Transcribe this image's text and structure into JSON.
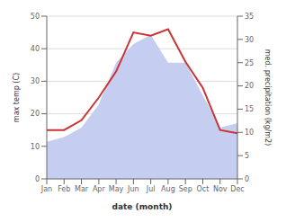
{
  "chart_data": {
    "type": "line",
    "categories": [
      "Jan",
      "Feb",
      "Mar",
      "Apr",
      "May",
      "Jun",
      "Jul",
      "Aug",
      "Sep",
      "Oct",
      "Nov",
      "Dec"
    ],
    "series": [
      {
        "type": "area",
        "color": "#c5cef0",
        "axis": "y2",
        "values": [
          8,
          9,
          11,
          16,
          25,
          29,
          31,
          25,
          25,
          18,
          11,
          12
        ]
      },
      {
        "type": "line",
        "color": "#cc3333",
        "values": [
          15,
          15,
          18,
          25,
          33,
          45,
          44,
          46,
          36,
          28,
          15,
          14
        ]
      }
    ],
    "xlabel": "date (month)",
    "ylabel": "max temp (C)",
    "y2label": "med. precipitation (kg/m2)",
    "ylim": [
      0,
      50
    ],
    "yticks": [
      0,
      10,
      20,
      30,
      40,
      50
    ],
    "y2lim": [
      0,
      35
    ],
    "y2ticks": [
      0,
      5,
      10,
      15,
      20,
      25,
      30,
      35
    ],
    "grid": "y"
  }
}
